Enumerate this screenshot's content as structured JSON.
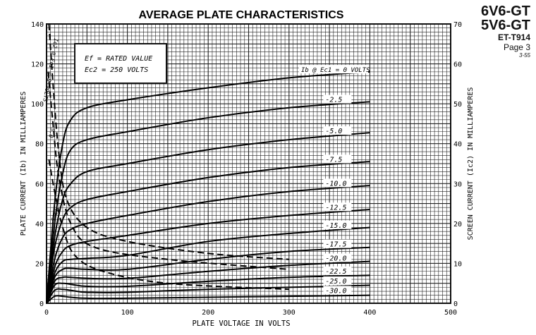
{
  "header": {
    "tube_1": "6V6-GT",
    "tube_2": "5V6-GT",
    "doc_id": "ET-T914",
    "page": "Page 3",
    "date": "3-55"
  },
  "chart_data": {
    "type": "line",
    "title": "AVERAGE PLATE CHARACTERISTICS",
    "xlabel": "PLATE VOLTAGE IN VOLTS",
    "ylabel": "PLATE CURRENT (Ib) IN MILLIAMPERES",
    "y2label": "SCREEN CURRENT (Ic2) IN MILLIAMPERES",
    "xlim": [
      0,
      500
    ],
    "ylim": [
      0,
      140
    ],
    "y2lim": [
      0,
      70
    ],
    "xticks": [
      "0",
      "100",
      "200",
      "300",
      "400",
      "500"
    ],
    "yticks": [
      "0",
      "20",
      "40",
      "60",
      "80",
      "100",
      "120",
      "140"
    ],
    "y2ticks": [
      "0",
      "10",
      "20",
      "30",
      "40",
      "50",
      "60",
      "70"
    ],
    "grid": true,
    "conditions": [
      "Ef = RATED VALUE",
      "Ec2 = 250 VOLTS"
    ],
    "plate_series": [
      {
        "name": "Ib @ Ec1 = 0 VOLTS",
        "points": [
          [
            0,
            0
          ],
          [
            10,
            50
          ],
          [
            20,
            80
          ],
          [
            30,
            92
          ],
          [
            50,
            98
          ],
          [
            100,
            102
          ],
          [
            200,
            108
          ],
          [
            300,
            113
          ],
          [
            400,
            116
          ]
        ]
      },
      {
        "name": "-2.5",
        "points": [
          [
            0,
            0
          ],
          [
            10,
            40
          ],
          [
            20,
            65
          ],
          [
            30,
            77
          ],
          [
            50,
            82
          ],
          [
            100,
            86
          ],
          [
            200,
            93
          ],
          [
            300,
            98
          ],
          [
            400,
            101
          ]
        ]
      },
      {
        "name": "-5.0",
        "points": [
          [
            0,
            0
          ],
          [
            10,
            33
          ],
          [
            20,
            52
          ],
          [
            30,
            60
          ],
          [
            50,
            66
          ],
          [
            100,
            70
          ],
          [
            200,
            77
          ],
          [
            300,
            82
          ],
          [
            400,
            85.5
          ]
        ]
      },
      {
        "name": "-7.5",
        "points": [
          [
            0,
            0
          ],
          [
            10,
            28
          ],
          [
            20,
            42
          ],
          [
            30,
            48
          ],
          [
            50,
            52
          ],
          [
            100,
            56
          ],
          [
            200,
            63
          ],
          [
            300,
            68
          ],
          [
            400,
            71
          ]
        ]
      },
      {
        "name": "-10.0",
        "points": [
          [
            0,
            0
          ],
          [
            10,
            22
          ],
          [
            20,
            33
          ],
          [
            30,
            37
          ],
          [
            50,
            40
          ],
          [
            100,
            44
          ],
          [
            200,
            51
          ],
          [
            300,
            56
          ],
          [
            400,
            59
          ]
        ]
      },
      {
        "name": "-12.5",
        "points": [
          [
            0,
            0
          ],
          [
            10,
            18
          ],
          [
            20,
            26
          ],
          [
            30,
            29
          ],
          [
            50,
            31
          ],
          [
            100,
            34
          ],
          [
            200,
            40
          ],
          [
            300,
            44
          ],
          [
            400,
            47
          ]
        ]
      },
      {
        "name": "-15.0",
        "points": [
          [
            0,
            0
          ],
          [
            10,
            15
          ],
          [
            20,
            21
          ],
          [
            30,
            22
          ],
          [
            50,
            22.5
          ],
          [
            100,
            24
          ],
          [
            200,
            31
          ],
          [
            300,
            35
          ],
          [
            400,
            38
          ]
        ]
      },
      {
        "name": "-17.5",
        "points": [
          [
            0,
            0
          ],
          [
            10,
            13
          ],
          [
            20,
            17
          ],
          [
            30,
            17.5
          ],
          [
            50,
            17
          ],
          [
            100,
            17
          ],
          [
            200,
            22
          ],
          [
            300,
            26
          ],
          [
            400,
            28
          ]
        ]
      },
      {
        "name": "-20.0",
        "points": [
          [
            0,
            0
          ],
          [
            10,
            11
          ],
          [
            20,
            13
          ],
          [
            30,
            13
          ],
          [
            50,
            12.5
          ],
          [
            100,
            12.5
          ],
          [
            200,
            16
          ],
          [
            300,
            19
          ],
          [
            400,
            21
          ]
        ]
      },
      {
        "name": "-22.5",
        "points": [
          [
            0,
            0
          ],
          [
            10,
            9
          ],
          [
            20,
            10
          ],
          [
            30,
            9.5
          ],
          [
            50,
            8.5
          ],
          [
            100,
            8.5
          ],
          [
            200,
            11
          ],
          [
            300,
            13
          ],
          [
            400,
            14
          ]
        ]
      },
      {
        "name": "-25.0",
        "points": [
          [
            0,
            0
          ],
          [
            10,
            6.5
          ],
          [
            20,
            7
          ],
          [
            30,
            6.5
          ],
          [
            50,
            5.5
          ],
          [
            100,
            5.5
          ],
          [
            200,
            7
          ],
          [
            300,
            8
          ],
          [
            400,
            9
          ]
        ]
      },
      {
        "name": "-30.0",
        "points": [
          [
            0,
            0
          ],
          [
            10,
            3.5
          ],
          [
            20,
            3.5
          ],
          [
            30,
            3
          ],
          [
            50,
            2.5
          ],
          [
            100,
            2.5
          ],
          [
            200,
            3
          ],
          [
            300,
            3.5
          ],
          [
            400,
            4
          ]
        ]
      }
    ],
    "screen_series": [
      {
        "name": "Ic2 @ Ec1 = 0 VOLTS",
        "points": [
          [
            3,
            70
          ],
          [
            8,
            55
          ],
          [
            15,
            38
          ],
          [
            25,
            26
          ],
          [
            50,
            19
          ],
          [
            100,
            15.5
          ],
          [
            200,
            12.5
          ],
          [
            300,
            11
          ]
        ]
      },
      {
        "name": "-5.0",
        "points": [
          [
            2,
            58
          ],
          [
            8,
            45
          ],
          [
            15,
            32
          ],
          [
            30,
            20
          ],
          [
            60,
            14
          ],
          [
            150,
            11
          ],
          [
            300,
            8.5
          ]
        ]
      },
      {
        "name": "-12.5",
        "points": [
          [
            3,
            36
          ],
          [
            10,
            28
          ],
          [
            20,
            19
          ],
          [
            35,
            12
          ],
          [
            70,
            8
          ],
          [
            150,
            5
          ],
          [
            300,
            3.5
          ]
        ]
      }
    ]
  }
}
